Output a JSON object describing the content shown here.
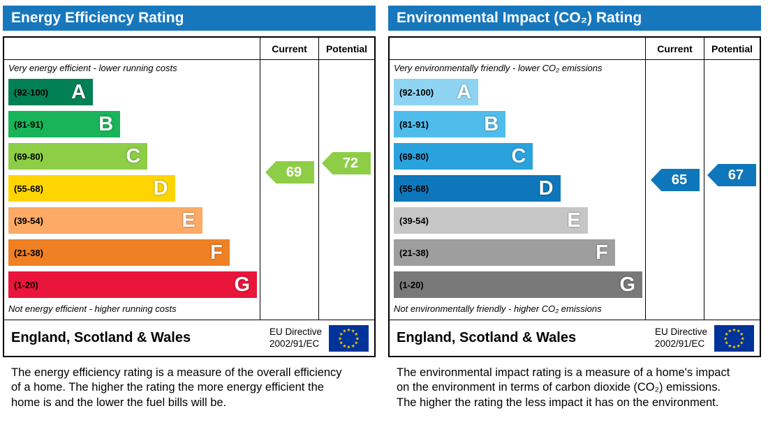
{
  "colors": {
    "header_blue": "#1777bd",
    "flag_blue": "#003399",
    "flag_star": "#ffcc00"
  },
  "panels": [
    {
      "title": "Energy Efficiency Rating",
      "columns": {
        "current": "Current",
        "potential": "Potential"
      },
      "top_note": "Very energy efficient - lower running costs",
      "bottom_note": "Not energy efficient - higher running costs",
      "bands": [
        {
          "letter": "A",
          "range": "(92-100)",
          "color": "#008054",
          "width_pct": 34
        },
        {
          "letter": "B",
          "range": "(81-91)",
          "color": "#19b459",
          "width_pct": 45
        },
        {
          "letter": "C",
          "range": "(69-80)",
          "color": "#8dce46",
          "width_pct": 56
        },
        {
          "letter": "D",
          "range": "(55-68)",
          "color": "#ffd500",
          "width_pct": 67
        },
        {
          "letter": "E",
          "range": "(39-54)",
          "color": "#fcaa65",
          "width_pct": 78
        },
        {
          "letter": "F",
          "range": "(21-38)",
          "color": "#ef8023",
          "width_pct": 89
        },
        {
          "letter": "G",
          "range": "(1-20)",
          "color": "#e9153b",
          "width_pct": 100
        }
      ],
      "current": {
        "value": 69,
        "color": "#8dce46"
      },
      "potential": {
        "value": 72,
        "color": "#8dce46"
      },
      "footer": {
        "region": "England, Scotland & Wales",
        "directive_line1": "EU Directive",
        "directive_line2": "2002/91/EC"
      },
      "description": "The energy efficiency rating is a measure of the overall efficiency of a home. The higher the rating the more energy efficient the home is and the lower the fuel bills will be."
    },
    {
      "title": "Environmental Impact (CO₂) Rating",
      "columns": {
        "current": "Current",
        "potential": "Potential"
      },
      "top_note": "Very environmentally friendly - lower CO₂ emissions",
      "bottom_note": "Not environmentally friendly - higher CO₂ emissions",
      "bands": [
        {
          "letter": "A",
          "range": "(92-100)",
          "color": "#8ed4f2",
          "width_pct": 34
        },
        {
          "letter": "B",
          "range": "(81-91)",
          "color": "#50bcec",
          "width_pct": 45
        },
        {
          "letter": "C",
          "range": "(69-80)",
          "color": "#2aa2dc",
          "width_pct": 56
        },
        {
          "letter": "D",
          "range": "(55-68)",
          "color": "#0e76ba",
          "width_pct": 67
        },
        {
          "letter": "E",
          "range": "(39-54)",
          "color": "#c6c6c6",
          "width_pct": 78
        },
        {
          "letter": "F",
          "range": "(21-38)",
          "color": "#9e9e9e",
          "width_pct": 89
        },
        {
          "letter": "G",
          "range": "(1-20)",
          "color": "#797979",
          "width_pct": 100
        }
      ],
      "current": {
        "value": 65,
        "color": "#0e76ba"
      },
      "potential": {
        "value": 67,
        "color": "#0e76ba"
      },
      "footer": {
        "region": "England, Scotland & Wales",
        "directive_line1": "EU Directive",
        "directive_line2": "2002/91/EC"
      },
      "description": "The environmental impact rating is a measure of a home's impact on the environment in terms of carbon dioxide (CO₂) emissions. The higher the rating the less impact it has on the environment."
    }
  ],
  "chart_data": [
    {
      "type": "bar",
      "orientation": "horizontal",
      "title": "Energy Efficiency Rating",
      "categories": [
        "A (92-100)",
        "B (81-91)",
        "C (69-80)",
        "D (55-68)",
        "E (39-54)",
        "F (21-38)",
        "G (1-20)"
      ],
      "values": [
        34,
        45,
        56,
        67,
        78,
        89,
        100
      ],
      "series": [
        {
          "name": "Current",
          "values": [
            69
          ]
        },
        {
          "name": "Potential",
          "values": [
            72
          ]
        }
      ],
      "annotations": [
        "Very energy efficient - lower running costs",
        "Not energy efficient - higher running costs"
      ],
      "legend_position": "top-columns"
    },
    {
      "type": "bar",
      "orientation": "horizontal",
      "title": "Environmental Impact (CO₂) Rating",
      "categories": [
        "A (92-100)",
        "B (81-91)",
        "C (69-80)",
        "D (55-68)",
        "E (39-54)",
        "F (21-38)",
        "G (1-20)"
      ],
      "values": [
        34,
        45,
        56,
        67,
        78,
        89,
        100
      ],
      "series": [
        {
          "name": "Current",
          "values": [
            65
          ]
        },
        {
          "name": "Potential",
          "values": [
            67
          ]
        }
      ],
      "annotations": [
        "Very environmentally friendly - lower CO₂ emissions",
        "Not environmentally friendly - higher CO₂ emissions"
      ],
      "legend_position": "top-columns"
    }
  ]
}
